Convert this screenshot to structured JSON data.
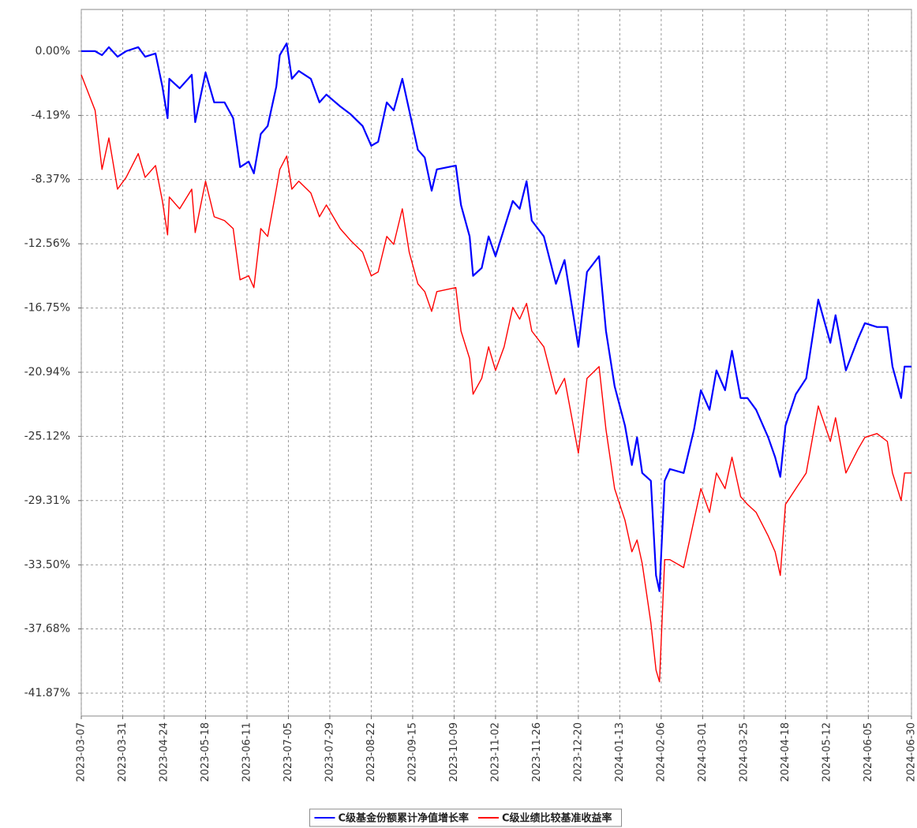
{
  "chart_data": {
    "type": "line",
    "x": [
      "2023-03-07",
      "2023-03-15",
      "2023-03-19",
      "2023-03-23",
      "2023-03-28",
      "2023-04-02",
      "2023-04-09",
      "2023-04-13",
      "2023-04-19",
      "2023-04-23",
      "2023-04-26",
      "2023-04-27",
      "2023-05-03",
      "2023-05-10",
      "2023-05-12",
      "2023-05-18",
      "2023-05-23",
      "2023-05-29",
      "2023-06-03",
      "2023-06-07",
      "2023-06-12",
      "2023-06-15",
      "2023-06-19",
      "2023-06-23",
      "2023-06-28",
      "2023-06-30",
      "2023-07-04",
      "2023-07-07",
      "2023-07-11",
      "2023-07-18",
      "2023-07-23",
      "2023-07-27",
      "2023-08-04",
      "2023-08-10",
      "2023-08-17",
      "2023-08-22",
      "2023-08-26",
      "2023-08-31",
      "2023-09-04",
      "2023-09-09",
      "2023-09-13",
      "2023-09-18",
      "2023-09-22",
      "2023-09-26",
      "2023-09-29",
      "2023-10-10",
      "2023-10-13",
      "2023-10-18",
      "2023-10-20",
      "2023-10-25",
      "2023-10-29",
      "2023-11-02",
      "2023-11-07",
      "2023-11-12",
      "2023-11-16",
      "2023-11-20",
      "2023-11-23",
      "2023-11-30",
      "2023-12-07",
      "2023-12-12",
      "2023-12-20",
      "2023-12-25",
      "2024-01-01",
      "2024-01-05",
      "2024-01-10",
      "2024-01-16",
      "2024-01-20",
      "2024-01-23",
      "2024-01-26",
      "2024-01-31",
      "2024-02-03",
      "2024-02-05",
      "2024-02-08",
      "2024-02-11",
      "2024-02-19",
      "2024-02-25",
      "2024-02-29",
      "2024-03-05",
      "2024-03-09",
      "2024-03-14",
      "2024-03-18",
      "2024-03-23",
      "2024-03-27",
      "2024-04-01",
      "2024-04-08",
      "2024-04-12",
      "2024-04-15",
      "2024-04-18",
      "2024-04-24",
      "2024-04-30",
      "2024-05-07",
      "2024-05-14",
      "2024-05-17",
      "2024-05-23",
      "2024-05-30",
      "2024-06-03",
      "2024-06-10",
      "2024-06-16",
      "2024-06-19",
      "2024-06-24",
      "2024-06-26",
      "2024-06-30"
    ],
    "series": [
      {
        "name": "C级基金份额累计净值增长率",
        "color": "#0000ff",
        "values": [
          0,
          0,
          -0.26,
          0.26,
          -0.36,
          0,
          0.26,
          -0.36,
          -0.15,
          -2.31,
          -4.37,
          -1.8,
          -2.42,
          -1.54,
          -4.63,
          -1.39,
          -3.34,
          -3.34,
          -4.37,
          -7.56,
          -7.2,
          -7.97,
          -5.4,
          -4.88,
          -2.31,
          -0.26,
          0.51,
          -1.8,
          -1.29,
          -1.8,
          -3.34,
          -2.83,
          -3.6,
          -4.11,
          -4.88,
          -6.17,
          -5.91,
          -3.34,
          -3.86,
          -1.8,
          -3.86,
          -6.43,
          -6.94,
          -9.1,
          -7.71,
          -7.46,
          -10.03,
          -12.08,
          -14.65,
          -14.14,
          -12.08,
          -13.37,
          -11.57,
          -9.77,
          -10.28,
          -8.48,
          -11.05,
          -12.08,
          -15.17,
          -13.62,
          -19.28,
          -14.4,
          -13.37,
          -18.25,
          -21.85,
          -24.42,
          -26.99,
          -25.19,
          -27.51,
          -28.02,
          -34.19,
          -35.22,
          -28.02,
          -27.25,
          -27.51,
          -24.68,
          -22.11,
          -23.39,
          -20.82,
          -22.11,
          -19.54,
          -22.62,
          -22.62,
          -23.39,
          -25.19,
          -26.48,
          -27.76,
          -24.42,
          -22.37,
          -21.34,
          -16.2,
          -19.02,
          -17.22,
          -20.82,
          -18.77,
          -17.74,
          -17.99,
          -17.99,
          -20.57,
          -22.62,
          -20.57,
          -20.57
        ]
      },
      {
        "name": "C级业绩比较基准收益率",
        "color": "#ff0000",
        "values": [
          -1.54,
          -3.86,
          -7.71,
          -5.66,
          -9.0,
          -8.23,
          -6.68,
          -8.23,
          -7.46,
          -9.77,
          -11.98,
          -9.51,
          -10.28,
          -9.0,
          -11.83,
          -8.48,
          -10.8,
          -11.05,
          -11.57,
          -14.91,
          -14.65,
          -15.42,
          -11.57,
          -12.08,
          -9.0,
          -7.71,
          -6.84,
          -9.0,
          -8.48,
          -9.25,
          -10.8,
          -10.03,
          -11.57,
          -12.34,
          -13.11,
          -14.65,
          -14.4,
          -12.08,
          -12.6,
          -10.28,
          -13.11,
          -15.17,
          -15.68,
          -16.97,
          -15.68,
          -15.42,
          -18.25,
          -20.05,
          -22.37,
          -21.34,
          -19.28,
          -20.82,
          -19.28,
          -16.71,
          -17.48,
          -16.45,
          -18.25,
          -19.28,
          -22.37,
          -21.34,
          -26.22,
          -21.34,
          -20.57,
          -24.68,
          -28.53,
          -30.59,
          -32.65,
          -31.88,
          -33.42,
          -37.28,
          -40.36,
          -41.13,
          -33.16,
          -33.16,
          -33.68,
          -30.59,
          -28.53,
          -30.08,
          -27.51,
          -28.53,
          -26.48,
          -29.05,
          -29.56,
          -30.08,
          -31.62,
          -32.65,
          -34.19,
          -29.56,
          -28.53,
          -27.51,
          -23.14,
          -25.45,
          -23.91,
          -27.51,
          -25.96,
          -25.19,
          -24.94,
          -25.45,
          -27.51,
          -29.31,
          -27.51,
          -27.51
        ]
      }
    ],
    "xlim": [
      "2023-03-07",
      "2024-06-30"
    ],
    "xticks": [
      "2023-03-07",
      "2023-03-31",
      "2023-04-24",
      "2023-05-18",
      "2023-06-11",
      "2023-07-05",
      "2023-07-29",
      "2023-08-22",
      "2023-09-15",
      "2023-10-09",
      "2023-11-02",
      "2023-11-26",
      "2023-12-20",
      "2024-01-13",
      "2024-02-06",
      "2024-03-01",
      "2024-03-25",
      "2024-04-18",
      "2024-05-12",
      "2024-06-05",
      "2024-06-30"
    ],
    "ylim": [
      -43.36,
      2.72
    ],
    "yticks": [
      {
        "value": 0,
        "label": "0.00%"
      },
      {
        "value": -4.19,
        "label": "-4.19%"
      },
      {
        "value": -8.37,
        "label": "-8.37%"
      },
      {
        "value": -12.56,
        "label": "-12.56%"
      },
      {
        "value": -16.75,
        "label": "-16.75%"
      },
      {
        "value": -20.94,
        "label": "-20.94%"
      },
      {
        "value": -25.12,
        "label": "-25.12%"
      },
      {
        "value": -29.31,
        "label": "-29.31%"
      },
      {
        "value": -33.5,
        "label": "-33.50%"
      },
      {
        "value": -37.68,
        "label": "-37.68%"
      },
      {
        "value": -41.87,
        "label": "-41.87%"
      }
    ],
    "grid": true,
    "legend": "bottom"
  }
}
